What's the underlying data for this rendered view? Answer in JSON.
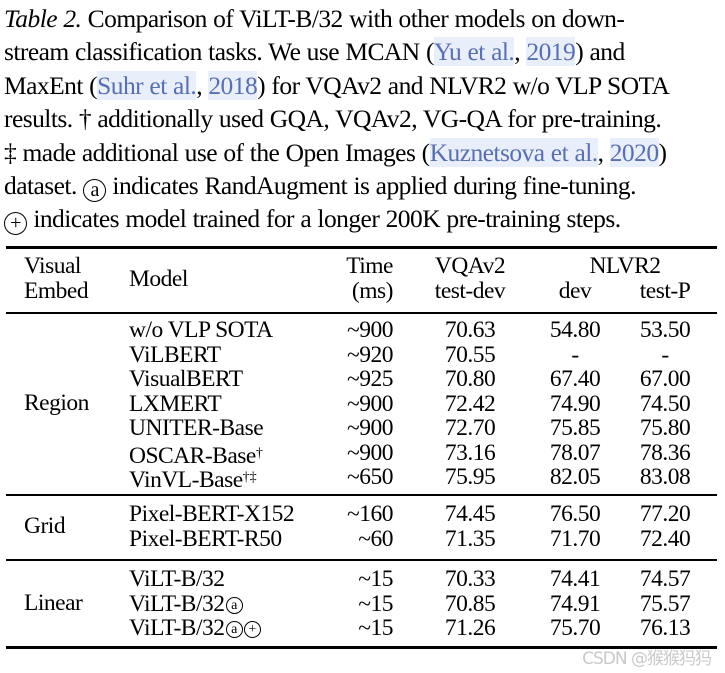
{
  "caption": {
    "label": "Table 2.",
    "lines": [
      " Comparison of ViLT-B/32 with other models on down-",
      "stream classification tasks. We use MCAN (",
      "MaxEnt (",
      "results. † additionally used GQA, VQAv2, VG-QA for pre-training.",
      "‡ made additional use of the Open Images (",
      "dataset. ",
      " indicates model trained for a longer 200K pre-training steps."
    ],
    "citations": {
      "yu_authors": "Yu et al.",
      "yu_year": "2019",
      "suhr_authors": "Suhr et al.",
      "suhr_year": "2018",
      "kuz_authors": "Kuznetsova et al.",
      "kuz_year": "2020"
    },
    "fragments": {
      "after_yu": ") and",
      "after_suhr": ") for VQAv2 and NLVR2 w/o VLP SOTA",
      "after_kuz": ")",
      "randaug_text": " indicates RandAugment is applied during fine-tuning.",
      "comma": ", "
    },
    "symbols": {
      "randaug": "a",
      "longer": "+"
    }
  },
  "table": {
    "headers": {
      "visual_embed_1": "Visual",
      "visual_embed_2": "Embed",
      "model": "Model",
      "time_1": "Time",
      "time_2": "(ms)",
      "vqa_1": "VQAv2",
      "vqa_2": "test-dev",
      "nlvr_1": "NLVR2",
      "nlvr_dev": "dev",
      "nlvr_testp": "test-P"
    },
    "groups": [
      {
        "name": "Region",
        "rows": [
          {
            "model": "w/o VLP SOTA",
            "mark": "",
            "time": "~900",
            "vqa": "70.63",
            "dev": "54.80",
            "testp": "53.50"
          },
          {
            "model": "ViLBERT",
            "mark": "",
            "time": "~920",
            "vqa": "70.55",
            "dev": "-",
            "testp": "-"
          },
          {
            "model": "VisualBERT",
            "mark": "",
            "time": "~925",
            "vqa": "70.80",
            "dev": "67.40",
            "testp": "67.00"
          },
          {
            "model": "LXMERT",
            "mark": "",
            "time": "~900",
            "vqa": "72.42",
            "dev": "74.90",
            "testp": "74.50"
          },
          {
            "model": "UNITER-Base",
            "mark": "",
            "time": "~900",
            "vqa": "72.70",
            "dev": "75.85",
            "testp": "75.80"
          },
          {
            "model": "OSCAR-Base",
            "mark": "†",
            "time": "~900",
            "vqa": "73.16",
            "dev": "78.07",
            "testp": "78.36"
          },
          {
            "model": "VinVL-Base",
            "mark": "†‡",
            "time": "~650",
            "vqa": "75.95",
            "dev": "82.05",
            "testp": "83.08"
          }
        ]
      },
      {
        "name": "Grid",
        "rows": [
          {
            "model": "Pixel-BERT-X152",
            "mark": "",
            "time": "~160",
            "vqa": "74.45",
            "dev": "76.50",
            "testp": "77.20"
          },
          {
            "model": "Pixel-BERT-R50",
            "mark": "",
            "time": "~60",
            "vqa": "71.35",
            "dev": "71.70",
            "testp": "72.40"
          }
        ]
      },
      {
        "name": "Linear",
        "rows": [
          {
            "model": "ViLT-B/32",
            "mark": "",
            "time": "~15",
            "vqa": "70.33",
            "dev": "74.41",
            "testp": "74.57"
          },
          {
            "model": "ViLT-B/32",
            "mark": "a",
            "time": "~15",
            "vqa": "70.85",
            "dev": "74.91",
            "testp": "75.57"
          },
          {
            "model": "ViLT-B/32",
            "mark": "a+",
            "time": "~15",
            "vqa": "71.26",
            "dev": "75.70",
            "testp": "76.13"
          }
        ]
      }
    ]
  },
  "watermark": "CSDN @猴猴犸犸"
}
